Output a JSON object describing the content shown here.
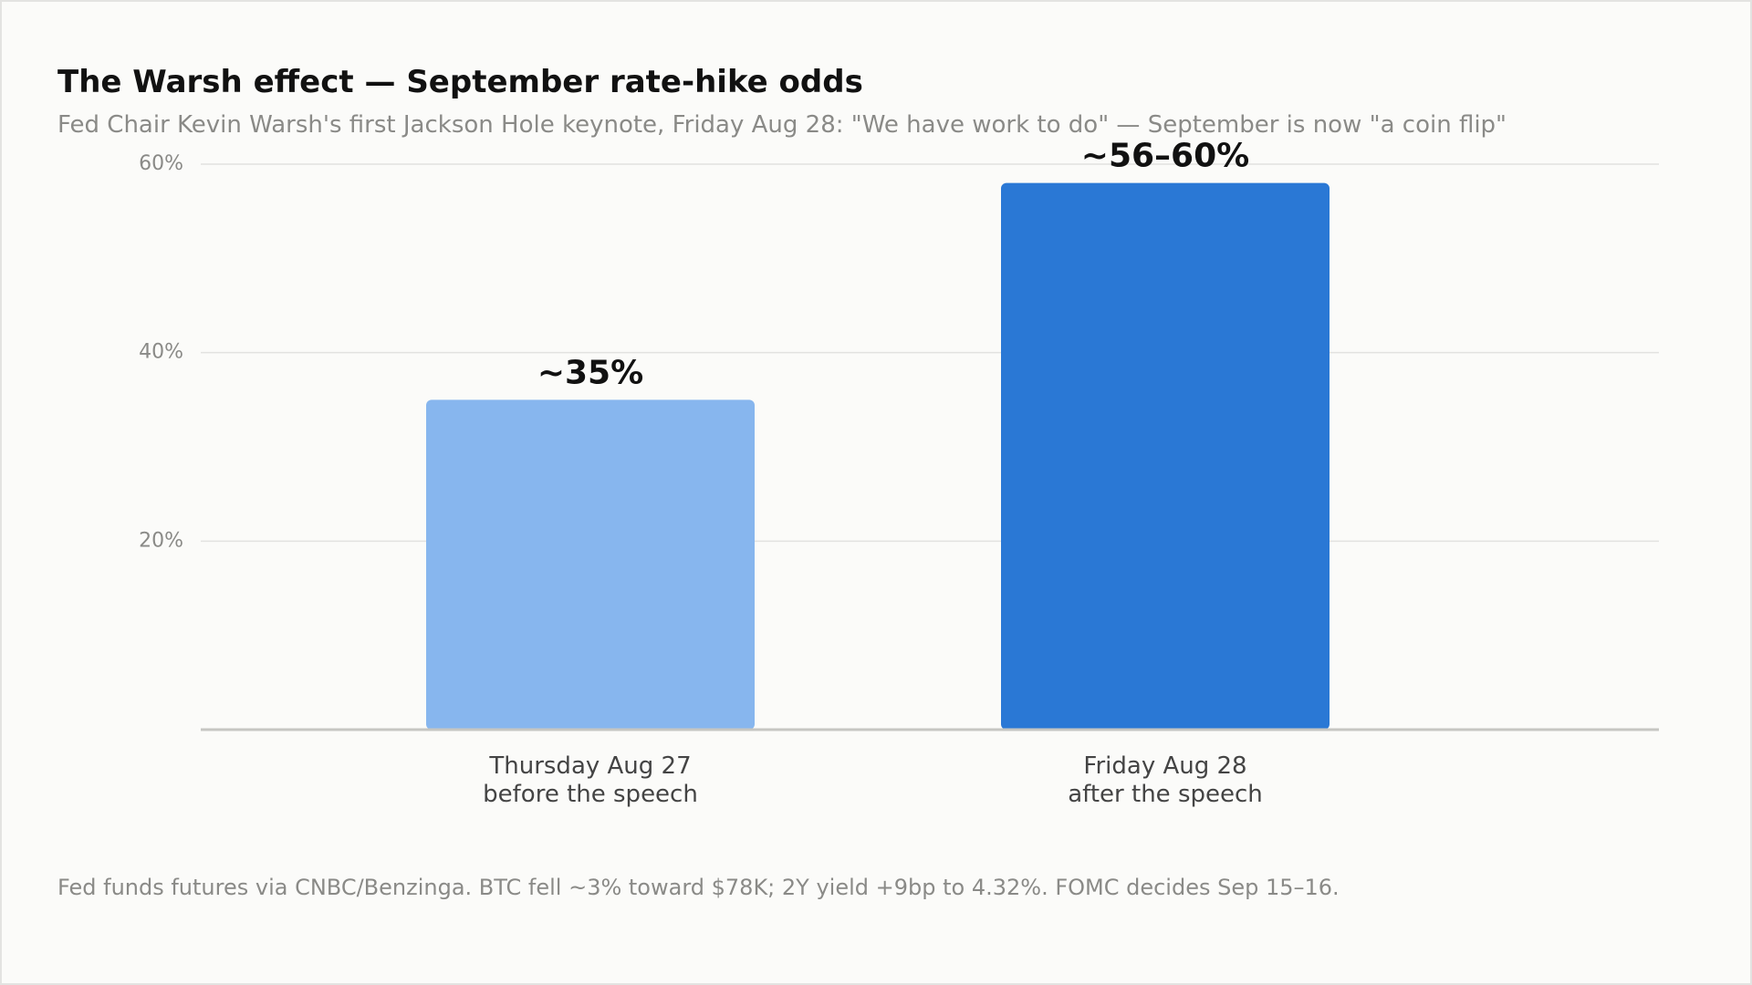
{
  "title": "The Warsh effect — September rate-hike odds",
  "subtitle": "Fed Chair Kevin Warsh's first Jackson Hole keynote, Friday Aug 28: \"We have work to do\" — September is now \"a coin flip\"",
  "footnote": "Fed funds futures via CNBC/Benzinga. BTC fell ~3% toward $78K; 2Y yield +9bp to 4.32%. FOMC decides Sep 15–16.",
  "colors": {
    "background": "#fbfbf9",
    "gridline": "#e2e2e0",
    "baseline": "#c6c6c2",
    "bar_before": "#87b6ee",
    "bar_after": "#2a78d5"
  },
  "chart_data": {
    "type": "bar",
    "categories": [
      [
        "Thursday Aug 27",
        "before the speech"
      ],
      [
        "Friday Aug 28",
        "after the speech"
      ]
    ],
    "values": [
      35,
      58
    ],
    "data_labels": [
      "~35%",
      "~56–60%"
    ],
    "bar_colors": [
      "#87b6ee",
      "#2a78d5"
    ],
    "ylim": [
      0,
      60
    ],
    "yticks": [
      20,
      40,
      60
    ],
    "ytick_labels": [
      "20%",
      "40%",
      "60%"
    ],
    "xlabel": "",
    "ylabel": "",
    "grid": "horizontal"
  }
}
